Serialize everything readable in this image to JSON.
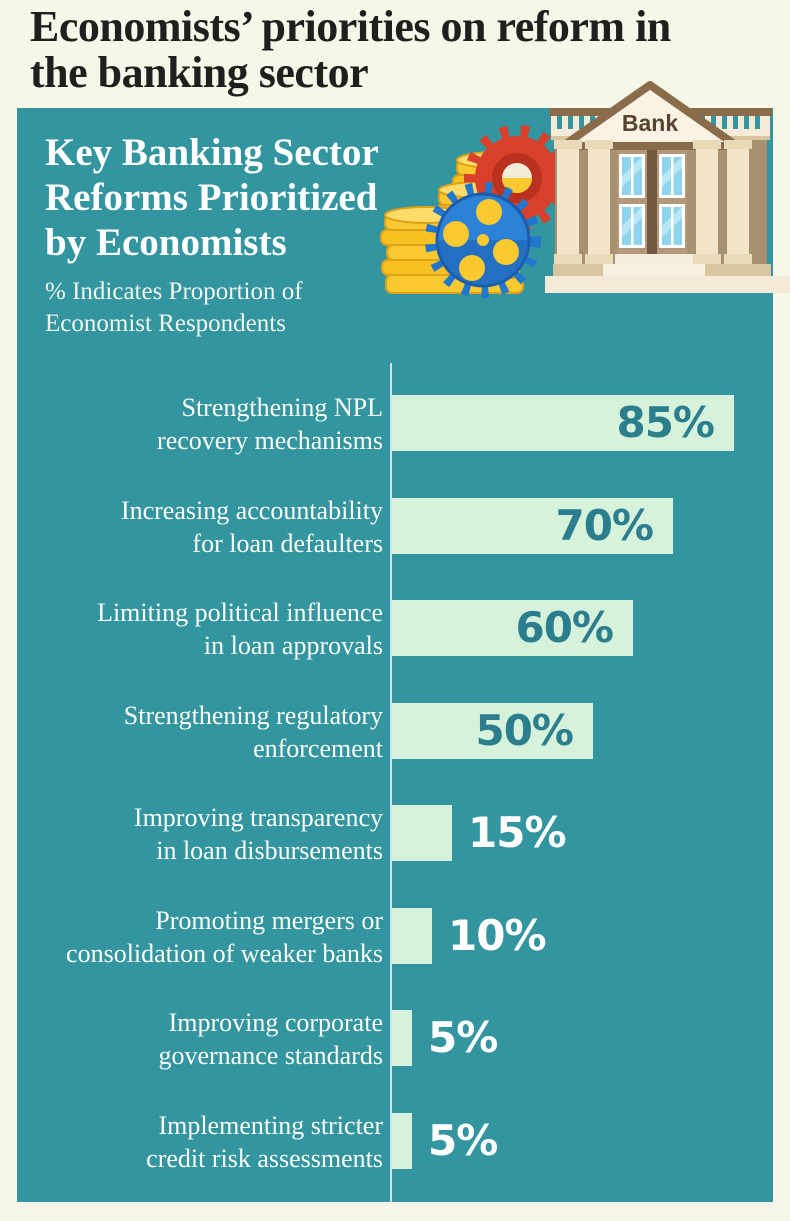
{
  "page_title_lines": [
    "Economists’ priorities on reform in",
    "the banking sector"
  ],
  "panel": {
    "title_lines": [
      "Key Banking Sector",
      "Reforms Prioritized",
      "by Economists"
    ],
    "subtitle_lines": [
      "% Indicates Proportion of",
      "Economist Respondents"
    ]
  },
  "illustration": {
    "bank_sign": "Bank"
  },
  "colors": {
    "page_background": "#f6f7e8",
    "panel_background": "#3295a0",
    "bar_fill": "#d6f2da",
    "value_inside_text": "#2b7e8e",
    "value_outside_text": "#ffffff",
    "label_text": "#fbfdf4",
    "title_text": "#1f1f1d",
    "panel_text": "#ffffff"
  },
  "chart_data": {
    "type": "bar",
    "orientation": "horizontal",
    "title": "Key Banking Sector Reforms Prioritized by Economists",
    "subtitle": "% Indicates Proportion of Economist Respondents",
    "unit": "%",
    "xlim": [
      0,
      100
    ],
    "grid": false,
    "legend": "none",
    "categories": [
      "Strengthening NPL recovery mechanisms",
      "Increasing accountability for loan defaulters",
      "Limiting political influence in loan approvals",
      "Strengthening regulatory enforcement",
      "Improving transparency in loan disbursements",
      "Promoting mergers or consolidation of weaker banks",
      "Improving corporate governance standards",
      "Implementing stricter credit risk assessments"
    ],
    "label_lines": [
      [
        "Strengthening NPL",
        "recovery mechanisms"
      ],
      [
        "Increasing accountability",
        "for loan defaulters"
      ],
      [
        "Limiting political influence",
        "in loan approvals"
      ],
      [
        "Strengthening regulatory",
        "enforcement"
      ],
      [
        "Improving transparency",
        "in loan disbursements"
      ],
      [
        "Promoting mergers or",
        "consolidation of weaker banks"
      ],
      [
        "Improving corporate",
        "governance standards"
      ],
      [
        "Implementing stricter",
        "credit risk assessments"
      ]
    ],
    "values": [
      85,
      70,
      60,
      50,
      15,
      10,
      5,
      5
    ],
    "value_labels": [
      "85%",
      "70%",
      "60%",
      "50%",
      "15%",
      "10%",
      "5%",
      "5%"
    ]
  }
}
